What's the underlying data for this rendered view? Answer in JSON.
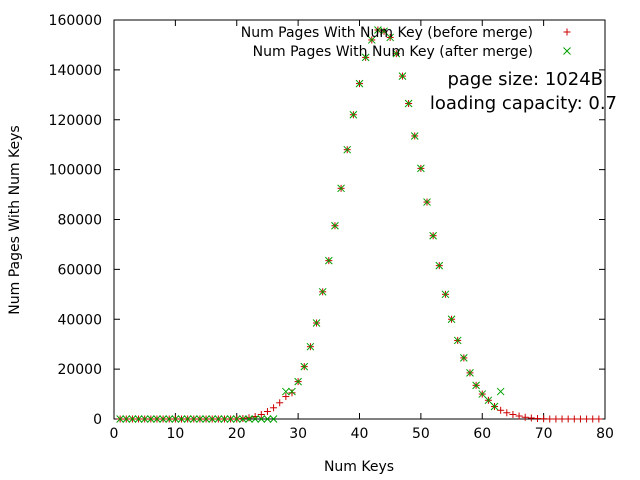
{
  "chart_data": {
    "type": "scatter",
    "xlabel": "Num Keys",
    "ylabel": "Num Pages With Num Keys",
    "xlim": [
      0,
      80
    ],
    "ylim": [
      0,
      160000
    ],
    "x_ticks": [
      0,
      10,
      20,
      30,
      40,
      50,
      60,
      70,
      80
    ],
    "y_ticks": [
      0,
      20000,
      40000,
      60000,
      80000,
      100000,
      120000,
      140000,
      160000
    ],
    "x_tick_labels": [
      "0",
      "10",
      "20",
      "30",
      "40",
      "50",
      "60",
      "70",
      "80"
    ],
    "y_tick_labels": [
      "0",
      "20000",
      "40000",
      "60000",
      "80000",
      "100000",
      "120000",
      "140000",
      "160000"
    ],
    "grid": false,
    "legend_position": "top-right",
    "annotations": [
      "page size: 1024B",
      "loading capacity: 0.7"
    ],
    "series": [
      {
        "name": "Num Pages With Num Key (before merge)",
        "marker": "plus",
        "color": "#cc0000",
        "points": [
          [
            1,
            0
          ],
          [
            2,
            0
          ],
          [
            3,
            0
          ],
          [
            4,
            0
          ],
          [
            5,
            0
          ],
          [
            6,
            0
          ],
          [
            7,
            0
          ],
          [
            8,
            0
          ],
          [
            9,
            0
          ],
          [
            10,
            0
          ],
          [
            11,
            0
          ],
          [
            12,
            0
          ],
          [
            13,
            0
          ],
          [
            14,
            0
          ],
          [
            15,
            0
          ],
          [
            16,
            0
          ],
          [
            17,
            0
          ],
          [
            18,
            0
          ],
          [
            19,
            0
          ],
          [
            20,
            0
          ],
          [
            21,
            200
          ],
          [
            22,
            500
          ],
          [
            23,
            1000
          ],
          [
            24,
            1800
          ],
          [
            25,
            3000
          ],
          [
            26,
            4500
          ],
          [
            27,
            6500
          ],
          [
            28,
            9000
          ],
          [
            29,
            10500
          ],
          [
            30,
            15000
          ],
          [
            31,
            21000
          ],
          [
            32,
            29000
          ],
          [
            33,
            38500
          ],
          [
            34,
            51000
          ],
          [
            35,
            63500
          ],
          [
            36,
            77500
          ],
          [
            37,
            92500
          ],
          [
            38,
            108000
          ],
          [
            39,
            122000
          ],
          [
            40,
            134500
          ],
          [
            41,
            145000
          ],
          [
            42,
            152000
          ],
          [
            43,
            156000
          ],
          [
            44,
            155500
          ],
          [
            45,
            153000
          ],
          [
            46,
            146500
          ],
          [
            47,
            137500
          ],
          [
            48,
            126500
          ],
          [
            49,
            113500
          ],
          [
            50,
            100500
          ],
          [
            51,
            87000
          ],
          [
            52,
            73500
          ],
          [
            53,
            61500
          ],
          [
            54,
            50000
          ],
          [
            55,
            40000
          ],
          [
            56,
            31500
          ],
          [
            57,
            24500
          ],
          [
            58,
            18500
          ],
          [
            59,
            13500
          ],
          [
            60,
            10000
          ],
          [
            61,
            7500
          ],
          [
            62,
            5000
          ],
          [
            63,
            3500
          ],
          [
            64,
            2500
          ],
          [
            65,
            1800
          ],
          [
            66,
            1200
          ],
          [
            67,
            700
          ],
          [
            68,
            400
          ],
          [
            69,
            200
          ],
          [
            70,
            100
          ],
          [
            71,
            0
          ],
          [
            72,
            0
          ],
          [
            73,
            0
          ],
          [
            74,
            0
          ],
          [
            75,
            0
          ],
          [
            76,
            0
          ],
          [
            77,
            0
          ],
          [
            78,
            0
          ],
          [
            79,
            0
          ]
        ]
      },
      {
        "name": "Num Pages With Num Key (after merge)",
        "marker": "cross",
        "color": "#00a000",
        "points": [
          [
            1,
            0
          ],
          [
            2,
            0
          ],
          [
            3,
            0
          ],
          [
            4,
            0
          ],
          [
            5,
            0
          ],
          [
            6,
            0
          ],
          [
            7,
            0
          ],
          [
            8,
            0
          ],
          [
            9,
            0
          ],
          [
            10,
            0
          ],
          [
            11,
            0
          ],
          [
            12,
            0
          ],
          [
            13,
            0
          ],
          [
            14,
            0
          ],
          [
            15,
            0
          ],
          [
            16,
            0
          ],
          [
            17,
            0
          ],
          [
            18,
            0
          ],
          [
            19,
            0
          ],
          [
            20,
            0
          ],
          [
            21,
            0
          ],
          [
            22,
            0
          ],
          [
            23,
            0
          ],
          [
            24,
            0
          ],
          [
            25,
            0
          ],
          [
            26,
            0
          ],
          [
            28,
            11000
          ],
          [
            29,
            11000
          ],
          [
            30,
            15000
          ],
          [
            31,
            21000
          ],
          [
            32,
            29000
          ],
          [
            33,
            38500
          ],
          [
            34,
            51000
          ],
          [
            35,
            63500
          ],
          [
            36,
            77500
          ],
          [
            37,
            92500
          ],
          [
            38,
            108000
          ],
          [
            39,
            122000
          ],
          [
            40,
            134500
          ],
          [
            41,
            145000
          ],
          [
            42,
            152000
          ],
          [
            43,
            156000
          ],
          [
            44,
            155500
          ],
          [
            45,
            153000
          ],
          [
            46,
            146500
          ],
          [
            47,
            137500
          ],
          [
            48,
            126500
          ],
          [
            49,
            113500
          ],
          [
            50,
            100500
          ],
          [
            51,
            87000
          ],
          [
            52,
            73500
          ],
          [
            53,
            61500
          ],
          [
            54,
            50000
          ],
          [
            55,
            40000
          ],
          [
            56,
            31500
          ],
          [
            57,
            24500
          ],
          [
            58,
            18500
          ],
          [
            59,
            13500
          ],
          [
            60,
            10000
          ],
          [
            61,
            7500
          ],
          [
            62,
            5000
          ],
          [
            63,
            11000
          ]
        ]
      }
    ]
  }
}
